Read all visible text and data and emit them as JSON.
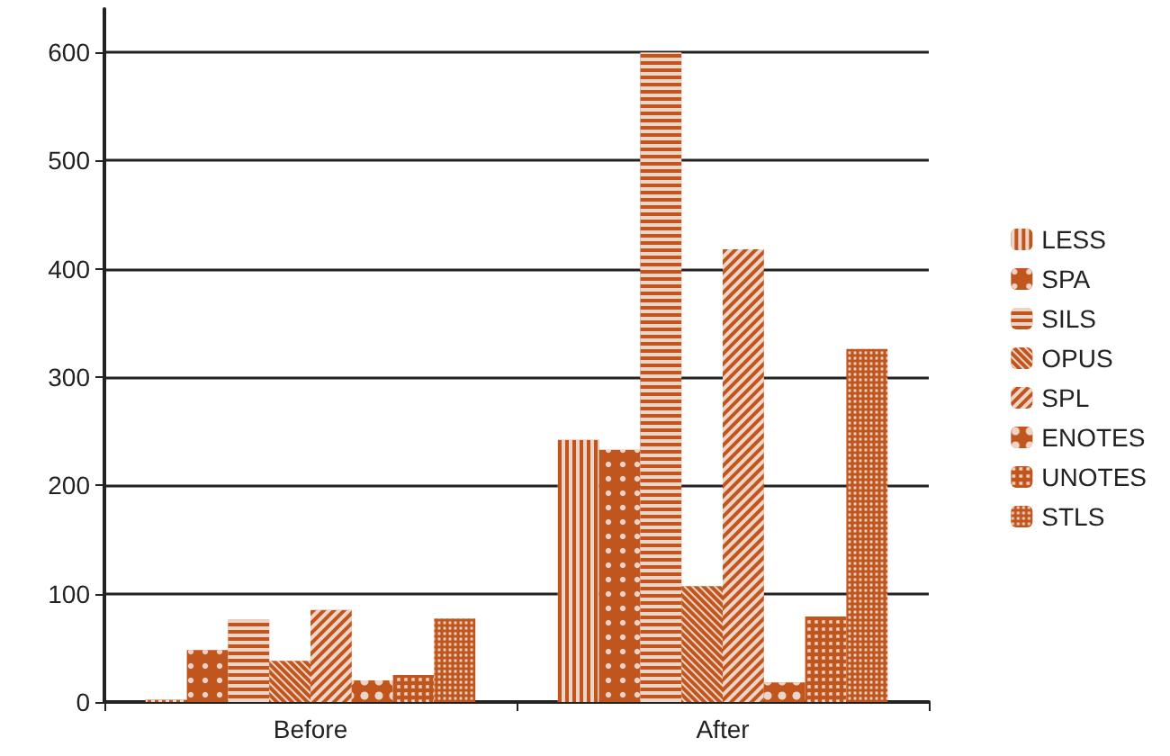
{
  "chart_data": {
    "type": "bar",
    "categories": [
      "Before",
      "After"
    ],
    "series": [
      {
        "name": "LESS",
        "color": "#c0561e",
        "values": [
          2,
          242
        ]
      },
      {
        "name": "SPA",
        "color": "#c0561e",
        "values": [
          48,
          233
        ]
      },
      {
        "name": "SILS",
        "color": "#c0561e",
        "values": [
          76,
          600
        ]
      },
      {
        "name": "OPUS",
        "color": "#c0561e",
        "values": [
          38,
          107
        ]
      },
      {
        "name": "SPL",
        "color": "#c0561e",
        "values": [
          85,
          418
        ]
      },
      {
        "name": "ENOTES",
        "color": "#c0561e",
        "values": [
          20,
          18
        ]
      },
      {
        "name": "UNOTES",
        "color": "#c0561e",
        "values": [
          25,
          79
        ]
      },
      {
        "name": "STLS",
        "color": "#c0561e",
        "values": [
          77,
          326
        ]
      }
    ],
    "ylim": [
      0,
      640
    ],
    "yticks": [
      0,
      100,
      200,
      300,
      400,
      500,
      600
    ],
    "grid": "y",
    "legend": "right"
  }
}
